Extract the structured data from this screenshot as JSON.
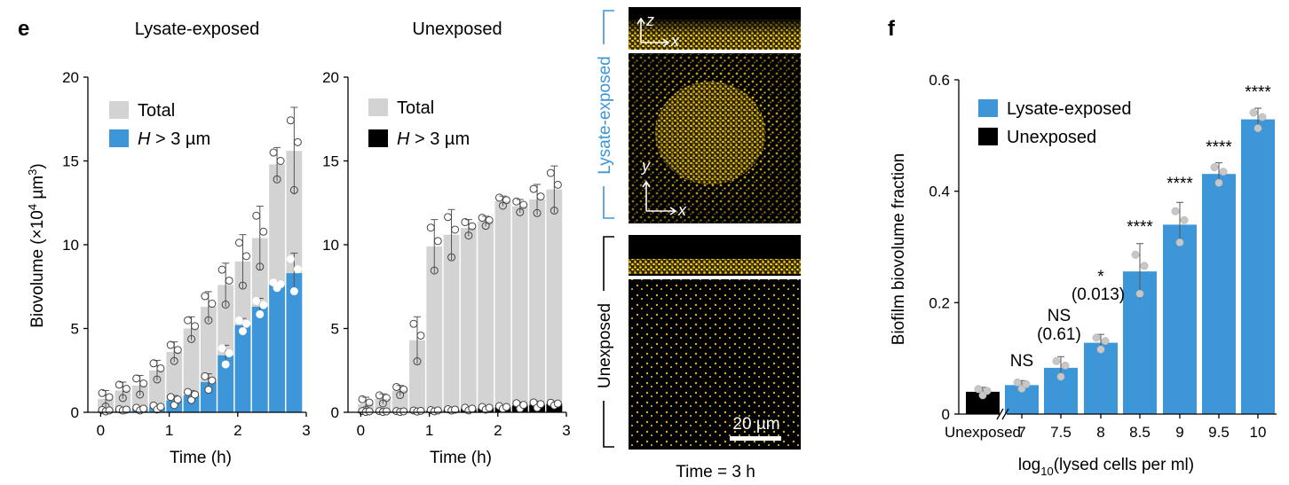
{
  "panel_labels": {
    "e": "e",
    "f": "f"
  },
  "colors": {
    "total": "#d3d3d3",
    "h_blue": "#3c96d8",
    "h_black": "#000000",
    "bar_blue": "#3c96d8",
    "bar_black": "#000000",
    "lysate_bracket": "#3c96d8",
    "yellow": "#f2c40c"
  },
  "chart_data": [
    {
      "type": "bar",
      "title": "Lysate-exposed",
      "xlabel": "Time (h)",
      "ylabel": "Biovolume (×10⁴ µm³)",
      "ylim": [
        0,
        20
      ],
      "yticks": [
        "0",
        "5",
        "10",
        "15",
        "20"
      ],
      "xticks": [
        "0",
        "1",
        "2",
        "3"
      ],
      "x": [
        0.083,
        0.333,
        0.583,
        0.833,
        1.083,
        1.333,
        1.583,
        1.833,
        2.083,
        2.333,
        2.583,
        2.833
      ],
      "legend": [
        "Total",
        "H > 3 µm"
      ],
      "series": [
        {
          "name": "Total",
          "values": [
            0.8,
            1.3,
            1.6,
            2.5,
            3.6,
            5.0,
            6.3,
            7.6,
            9.0,
            10.4,
            14.8,
            15.6
          ],
          "err": [
            0.5,
            0.5,
            0.6,
            0.6,
            0.6,
            0.7,
            0.9,
            1.3,
            1.6,
            1.9,
            1.0,
            2.6
          ]
        },
        {
          "name": "H > 3 µm",
          "values": [
            0.1,
            0.15,
            0.2,
            0.3,
            0.7,
            1.0,
            1.8,
            3.4,
            5.2,
            6.3,
            7.6,
            8.3
          ],
          "err": [
            0.05,
            0.05,
            0.1,
            0.15,
            0.3,
            0.3,
            0.5,
            0.6,
            0.4,
            0.5,
            0.2,
            1.2
          ]
        }
      ]
    },
    {
      "type": "bar",
      "title": "Unexposed",
      "xlabel": "Time (h)",
      "ylabel": "",
      "ylim": [
        0,
        20
      ],
      "yticks": [
        "0",
        "5",
        "10",
        "15",
        "20"
      ],
      "xticks": [
        "0",
        "1",
        "2",
        "3"
      ],
      "x": [
        0.083,
        0.333,
        0.583,
        0.833,
        1.083,
        1.333,
        1.583,
        1.833,
        2.083,
        2.333,
        2.583,
        2.833
      ],
      "legend": [
        "Total",
        "H > 3 µm"
      ],
      "series": [
        {
          "name": "Total",
          "values": [
            0.5,
            0.8,
            1.3,
            4.3,
            9.9,
            10.6,
            11.0,
            11.4,
            12.6,
            12.3,
            12.7,
            13.3
          ],
          "err": [
            0.4,
            0.3,
            0.3,
            1.4,
            1.6,
            1.5,
            0.5,
            0.3,
            0.3,
            0.4,
            0.9,
            1.4
          ]
        },
        {
          "name": "H > 3 µm",
          "values": [
            0.05,
            0.05,
            0.05,
            0.08,
            0.1,
            0.15,
            0.2,
            0.25,
            0.3,
            0.4,
            0.45,
            0.5
          ],
          "err": [
            0.03,
            0.03,
            0.03,
            0.04,
            0.05,
            0.05,
            0.1,
            0.1,
            0.1,
            0.2,
            0.2,
            0.1
          ]
        }
      ]
    },
    {
      "type": "bar",
      "xlabel": "log10(lysed cells per ml)",
      "ylabel": "Biofilm biovolume fraction",
      "ylim": [
        0,
        0.6
      ],
      "yticks": [
        "0",
        "0.2",
        "0.4",
        "0.6"
      ],
      "categories": [
        "Unexposed",
        "7",
        "7.5",
        "8",
        "8.5",
        "9",
        "9.5",
        "10"
      ],
      "values": [
        0.04,
        0.052,
        0.083,
        0.128,
        0.256,
        0.34,
        0.431,
        0.529
      ],
      "err": [
        0.008,
        0.008,
        0.02,
        0.015,
        0.05,
        0.04,
        0.02,
        0.02
      ],
      "annotations": [
        "",
        "NS",
        "NS (0.61)",
        "* (0.013)",
        "****",
        "****",
        "****",
        "****"
      ],
      "legend": [
        "Lysate-exposed",
        "Unexposed"
      ]
    }
  ],
  "legend": {
    "total": "Total",
    "h_prefix": "H",
    "h_suffix": " > 3 µm"
  },
  "ylabel_e": {
    "main": "Biovolume (×10",
    "sup1": "4",
    "mid": " µm",
    "sup2": "3",
    "end": ")"
  },
  "xlabel_f": {
    "main": "log",
    "sub": "10",
    "end": "(lysed cells per ml)"
  },
  "micro": {
    "bracket_top": "Lysate-exposed",
    "bracket_bottom": "Unexposed",
    "axis_z": "z",
    "axis_x": "x",
    "axis_y": "y",
    "scale": "20 µm",
    "caption": "Time = 3 h"
  },
  "annot_f": {
    "ns": "NS",
    "ns2": "NS",
    "ns2p": "(0.61)",
    "star": "*",
    "starp": "(0.013)",
    "four": "****"
  }
}
